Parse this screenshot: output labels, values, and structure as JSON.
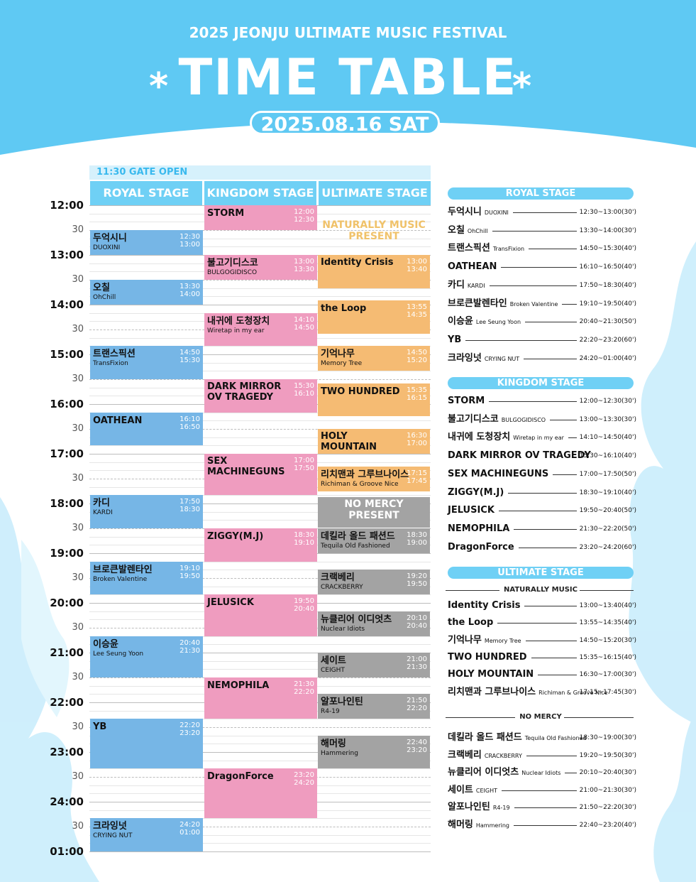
{
  "header": {
    "festival": "2025 JEONJU ULTIMATE MUSIC FESTIVAL",
    "title": "TIME TABLE",
    "star": "*",
    "date": "2025.08.16 SAT"
  },
  "colors": {
    "sky": "#5fc9f3",
    "royal": "#76b6e6",
    "kingdom": "#ef9cbf",
    "ultimate": "#f5bb73",
    "nomercy": "#a3a3a3",
    "naturally_text": "#f0c26a"
  },
  "grid": {
    "gate": "11:30 GATE OPEN",
    "stages": [
      "ROYAL STAGE",
      "KINGDOM STAGE",
      "ULTIMATE STAGE"
    ],
    "time_labels": [
      "12:00",
      "30",
      "13:00",
      "30",
      "14:00",
      "30",
      "15:00",
      "30",
      "16:00",
      "30",
      "17:00",
      "30",
      "18:00",
      "30",
      "19:00",
      "30",
      "20:00",
      "30",
      "21:00",
      "30",
      "22:00",
      "30",
      "23:00",
      "30",
      "24:00",
      "30",
      "01:00"
    ],
    "presents": [
      {
        "label": "NATURALLY MUSIC PRESENT"
      },
      {
        "label": "NO MERCY PRESENT"
      }
    ],
    "royal": [
      {
        "name": "두억시니",
        "sub": "DUOXINI",
        "start": "12:30",
        "end": "13:00"
      },
      {
        "name": "오칠",
        "sub": "OhChill",
        "start": "13:30",
        "end": "14:00"
      },
      {
        "name": "트랜스픽션",
        "sub": "TransFixion",
        "start": "14:50",
        "end": "15:30"
      },
      {
        "name": "OATHEAN",
        "sub": "",
        "start": "16:10",
        "end": "16:50"
      },
      {
        "name": "카디",
        "sub": "KARDI",
        "start": "17:50",
        "end": "18:30"
      },
      {
        "name": "브로큰발렌타인",
        "sub": "Broken Valentine",
        "start": "19:10",
        "end": "19:50"
      },
      {
        "name": "이승윤",
        "sub": "Lee Seung Yoon",
        "start": "20:40",
        "end": "21:30"
      },
      {
        "name": "YB",
        "sub": "",
        "start": "22:20",
        "end": "23:20"
      },
      {
        "name": "크라잉넛",
        "sub": "CRYING NUT",
        "start": "24:20",
        "end": "01:00"
      }
    ],
    "kingdom": [
      {
        "name": "STORM",
        "sub": "",
        "start": "12:00",
        "end": "12:30"
      },
      {
        "name": "불고기디스코",
        "sub": "BULGOGIDISCO",
        "start": "13:00",
        "end": "13:30"
      },
      {
        "name": "내귀에 도청장치",
        "sub": "Wiretap in my ear",
        "start": "14:10",
        "end": "14:50"
      },
      {
        "name": "DARK MIRROR OV TRAGEDY",
        "sub": "",
        "start": "15:30",
        "end": "16:10"
      },
      {
        "name": "SEX MACHINEGUNS",
        "sub": "",
        "start": "17:00",
        "end": "17:50"
      },
      {
        "name": "ZIGGY(M.J)",
        "sub": "",
        "start": "18:30",
        "end": "19:10"
      },
      {
        "name": "JELUSICK",
        "sub": "",
        "start": "19:50",
        "end": "20:40"
      },
      {
        "name": "NEMOPHILA",
        "sub": "",
        "start": "21:30",
        "end": "22:20"
      },
      {
        "name": "DragonForce",
        "sub": "",
        "start": "23:20",
        "end": "24:20"
      }
    ],
    "ultimate": [
      {
        "name": "Identity Crisis",
        "sub": "",
        "start": "13:00",
        "end": "13:40"
      },
      {
        "name": "the Loop",
        "sub": "",
        "start": "13:55",
        "end": "14:35"
      },
      {
        "name": "기억나무",
        "sub": "Memory Tree",
        "start": "14:50",
        "end": "15:20"
      },
      {
        "name": "TWO HUNDRED",
        "sub": "",
        "start": "15:35",
        "end": "16:15"
      },
      {
        "name": "HOLY MOUNTAIN",
        "sub": "",
        "start": "16:30",
        "end": "17:00"
      },
      {
        "name": "리치맨과 그루브나이스",
        "sub": "Richiman & Groove Nice",
        "start": "17:15",
        "end": "17:45"
      },
      {
        "name": "데킬라 올드 패션드",
        "sub": "Tequila Old Fashioned",
        "start": "18:30",
        "end": "19:00"
      },
      {
        "name": "크랙베리",
        "sub": "CRACKBERRY",
        "start": "19:20",
        "end": "19:50"
      },
      {
        "name": "뉴클리어 이디엇츠",
        "sub": "Nuclear Idiots",
        "start": "20:10",
        "end": "20:40"
      },
      {
        "name": "세이트",
        "sub": "CEIGHT",
        "start": "21:00",
        "end": "21:30"
      },
      {
        "name": "알포나인틴",
        "sub": "R4-19",
        "start": "21:50",
        "end": "22:20"
      },
      {
        "name": "해머링",
        "sub": "Hammering",
        "start": "22:40",
        "end": "23:20"
      }
    ]
  },
  "list": {
    "royal_title": "ROYAL STAGE",
    "kingdom_title": "KINGDOM STAGE",
    "ultimate_title": "ULTIMATE STAGE",
    "naturally_label": "NATURALLY MUSIC",
    "nomercy_label": "NO MERCY",
    "royal": [
      {
        "name": "두억시니",
        "sub": "DUOXINI",
        "time": "12:30~13:00(30')"
      },
      {
        "name": "오칠",
        "sub": "OhChill",
        "time": "13:30~14:00(30')"
      },
      {
        "name": "트랜스픽션",
        "sub": "TransFixion",
        "time": "14:50~15:30(40')"
      },
      {
        "name": "OATHEAN",
        "sub": "",
        "time": "16:10~16:50(40')"
      },
      {
        "name": "카디",
        "sub": "KARDI",
        "time": "17:50~18:30(40')"
      },
      {
        "name": "브로큰발렌타인",
        "sub": "Broken Valentine",
        "time": "19:10~19:50(40')"
      },
      {
        "name": "이승윤",
        "sub": "Lee Seung Yoon",
        "time": "20:40~21:30(50')"
      },
      {
        "name": "YB",
        "sub": "",
        "time": "22:20~23:20(60')"
      },
      {
        "name": "크라잉넛",
        "sub": "CRYING NUT",
        "time": "24:20~01:00(40')"
      }
    ],
    "kingdom": [
      {
        "name": "STORM",
        "sub": "",
        "time": "12:00~12:30(30')"
      },
      {
        "name": "불고기디스코",
        "sub": "BULGOGIDISCO",
        "time": "13:00~13:30(30')"
      },
      {
        "name": "내귀에 도청장치",
        "sub": "Wiretap in my ear",
        "time": "14:10~14:50(40')"
      },
      {
        "name": "DARK MIRROR OV TRAGEDY",
        "sub": "",
        "time": "15:30~16:10(40')"
      },
      {
        "name": "SEX MACHINEGUNS",
        "sub": "",
        "time": "17:00~17:50(50')"
      },
      {
        "name": "ZIGGY(M.J)",
        "sub": "",
        "time": "18:30~19:10(40')"
      },
      {
        "name": "JELUSICK",
        "sub": "",
        "time": "19:50~20:40(50')"
      },
      {
        "name": "NEMOPHILA",
        "sub": "",
        "time": "21:30~22:20(50')"
      },
      {
        "name": "DragonForce",
        "sub": "",
        "time": "23:20~24:20(60')"
      }
    ],
    "ultimate_naturally": [
      {
        "name": "Identity Crisis",
        "sub": "",
        "time": "13:00~13:40(40')"
      },
      {
        "name": "the Loop",
        "sub": "",
        "time": "13:55~14:35(40')"
      },
      {
        "name": "기억나무",
        "sub": "Memory Tree",
        "time": "14:50~15:20(30')"
      },
      {
        "name": "TWO HUNDRED",
        "sub": "",
        "time": "15:35~16:15(40')"
      },
      {
        "name": "HOLY MOUNTAIN",
        "sub": "",
        "time": "16:30~17:00(30')"
      },
      {
        "name": "리치맨과 그루브나이스",
        "sub": "Richiman & Groove Nice",
        "time": "17:15~17:45(30')"
      }
    ],
    "ultimate_nomercy": [
      {
        "name": "데킬라 올드 패션드",
        "sub": "Tequila Old Fashioned",
        "time": "18:30~19:00(30')"
      },
      {
        "name": "크랙베리",
        "sub": "CRACKBERRY",
        "time": "19:20~19:50(30')"
      },
      {
        "name": "뉴클리어 이디엇츠",
        "sub": "Nuclear Idiots",
        "time": "20:10~20:40(30')"
      },
      {
        "name": "세이트",
        "sub": "CEIGHT",
        "time": "21:00~21:30(30')"
      },
      {
        "name": "알포나인틴",
        "sub": "R4-19",
        "time": "21:50~22:20(30')"
      },
      {
        "name": "해머링",
        "sub": "Hammering",
        "time": "22:40~23:20(40')"
      }
    ]
  }
}
